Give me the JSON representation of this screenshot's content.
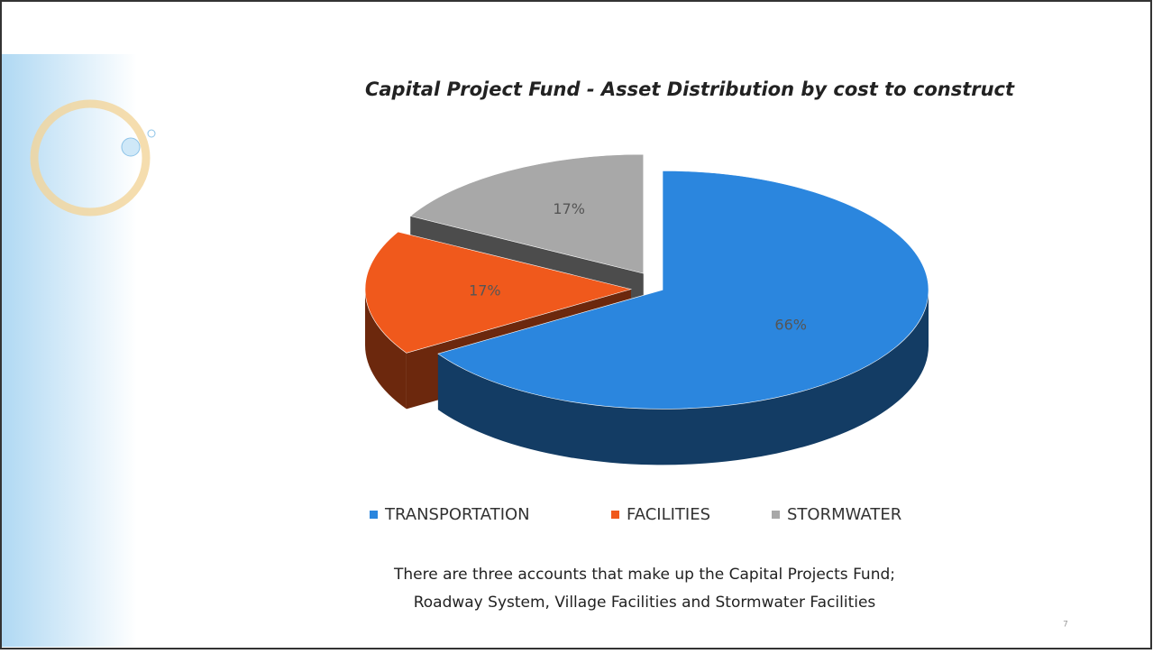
{
  "chart_data": {
    "type": "pie",
    "title": "Capital Project Fund - Asset Distribution by cost to construct",
    "categories": [
      "TRANSPORTATION",
      "FACILITIES",
      "STORMWATER"
    ],
    "values": [
      66,
      17,
      17
    ],
    "value_labels": [
      "66%",
      "17%",
      "17%"
    ],
    "colors": [
      "#2b86de",
      "#f0591c",
      "#a8a8a8"
    ],
    "legend": "bottom"
  },
  "caption": [
    "There are three accounts that make up the Capital Projects Fund;",
    "Roadway System, Village Facilities and Stormwater Facilities"
  ],
  "slide_number": "7"
}
